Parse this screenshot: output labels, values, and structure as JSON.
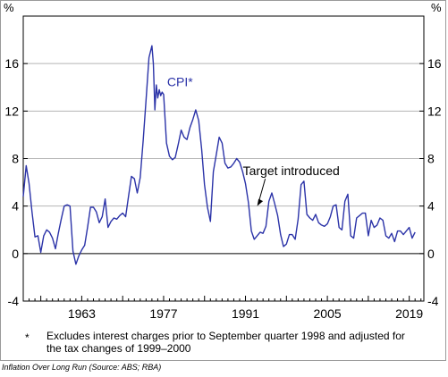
{
  "chart_data": {
    "type": "line",
    "unit_label": "%",
    "ylim": [
      -4,
      20
    ],
    "yticks": [
      -4,
      0,
      4,
      8,
      12,
      16
    ],
    "xlim": [
      1953,
      2021.5
    ],
    "xticks": [
      1963,
      1977,
      1991,
      2005,
      2019
    ],
    "grid": true,
    "series": [
      {
        "name": "CPI*",
        "color": "#2b33a8",
        "x": [
          1953.0,
          1953.5,
          1954.0,
          1954.5,
          1955.0,
          1955.5,
          1956.0,
          1956.5,
          1957.0,
          1957.5,
          1958.0,
          1958.5,
          1959.0,
          1959.5,
          1960.0,
          1960.5,
          1961.0,
          1961.5,
          1962.0,
          1962.5,
          1963.0,
          1963.5,
          1964.0,
          1964.5,
          1965.0,
          1965.5,
          1966.0,
          1966.5,
          1967.0,
          1967.5,
          1968.0,
          1968.5,
          1969.0,
          1969.5,
          1970.0,
          1970.5,
          1971.0,
          1971.5,
          1972.0,
          1972.5,
          1973.0,
          1973.5,
          1974.0,
          1974.5,
          1975.0,
          1975.25,
          1975.5,
          1975.75,
          1976.0,
          1976.25,
          1976.5,
          1976.75,
          1977.0,
          1977.5,
          1978.0,
          1978.5,
          1979.0,
          1979.5,
          1980.0,
          1980.5,
          1981.0,
          1981.5,
          1982.0,
          1982.5,
          1983.0,
          1983.5,
          1984.0,
          1984.5,
          1985.0,
          1985.5,
          1986.0,
          1986.5,
          1987.0,
          1987.5,
          1988.0,
          1988.5,
          1989.0,
          1989.5,
          1990.0,
          1990.5,
          1991.0,
          1991.5,
          1992.0,
          1992.5,
          1993.0,
          1993.5,
          1994.0,
          1994.5,
          1995.0,
          1995.5,
          1996.0,
          1996.5,
          1997.0,
          1997.5,
          1998.0,
          1998.5,
          1999.0,
          1999.5,
          2000.0,
          2000.5,
          2001.0,
          2001.5,
          2002.0,
          2002.5,
          2003.0,
          2003.5,
          2004.0,
          2004.5,
          2005.0,
          2005.5,
          2006.0,
          2006.5,
          2007.0,
          2007.5,
          2008.0,
          2008.5,
          2009.0,
          2009.5,
          2010.0,
          2010.5,
          2011.0,
          2011.5,
          2012.0,
          2012.5,
          2013.0,
          2013.5,
          2014.0,
          2014.5,
          2015.0,
          2015.5,
          2016.0,
          2016.5,
          2017.0,
          2017.5,
          2018.0,
          2018.5,
          2019.0,
          2019.5,
          2020.0
        ],
        "values": [
          4.8,
          7.4,
          5.9,
          3.5,
          1.4,
          1.5,
          0.1,
          1.5,
          2.0,
          1.8,
          1.3,
          0.4,
          1.7,
          2.9,
          4.0,
          4.1,
          4.0,
          0.2,
          -0.9,
          -0.2,
          0.3,
          0.7,
          2.2,
          3.9,
          3.9,
          3.5,
          2.6,
          3.1,
          4.6,
          2.2,
          2.7,
          3.0,
          2.9,
          3.2,
          3.4,
          3.1,
          4.8,
          6.5,
          6.3,
          5.1,
          6.4,
          9.5,
          12.9,
          16.5,
          17.5,
          16.0,
          12.1,
          14.2,
          13.1,
          13.8,
          13.3,
          13.6,
          13.4,
          9.3,
          8.2,
          7.9,
          8.1,
          9.2,
          10.4,
          9.8,
          9.6,
          10.6,
          11.3,
          12.1,
          11.2,
          8.8,
          5.8,
          3.9,
          2.7,
          6.9,
          8.3,
          9.8,
          9.3,
          7.6,
          7.2,
          7.3,
          7.6,
          8.0,
          7.7,
          6.9,
          5.9,
          4.3,
          1.9,
          1.2,
          1.5,
          1.8,
          1.7,
          2.3,
          4.4,
          5.1,
          4.2,
          3.2,
          1.6,
          0.6,
          0.8,
          1.6,
          1.6,
          1.2,
          2.9,
          5.8,
          6.1,
          3.3,
          3.0,
          2.8,
          3.3,
          2.6,
          2.4,
          2.3,
          2.5,
          3.1,
          4.0,
          4.1,
          2.2,
          2.0,
          4.4,
          5.0,
          1.5,
          1.3,
          3.0,
          3.2,
          3.4,
          3.4,
          1.5,
          2.8,
          2.2,
          2.4,
          3.0,
          2.8,
          1.5,
          1.3,
          1.7,
          1.0,
          1.9,
          1.9,
          1.6,
          1.9,
          2.2,
          1.3,
          1.8
        ]
      }
    ],
    "annotations": [
      {
        "text": "Target introduced",
        "x": 1993.0,
        "y": 4.0
      }
    ]
  },
  "footnote": {
    "mark": "*",
    "text": "Excludes interest charges prior to September quarter 1998 and adjusted for the tax changes of 1999–2000"
  },
  "caption": "Inflation Over Long Run (Source: ABS; RBA)"
}
